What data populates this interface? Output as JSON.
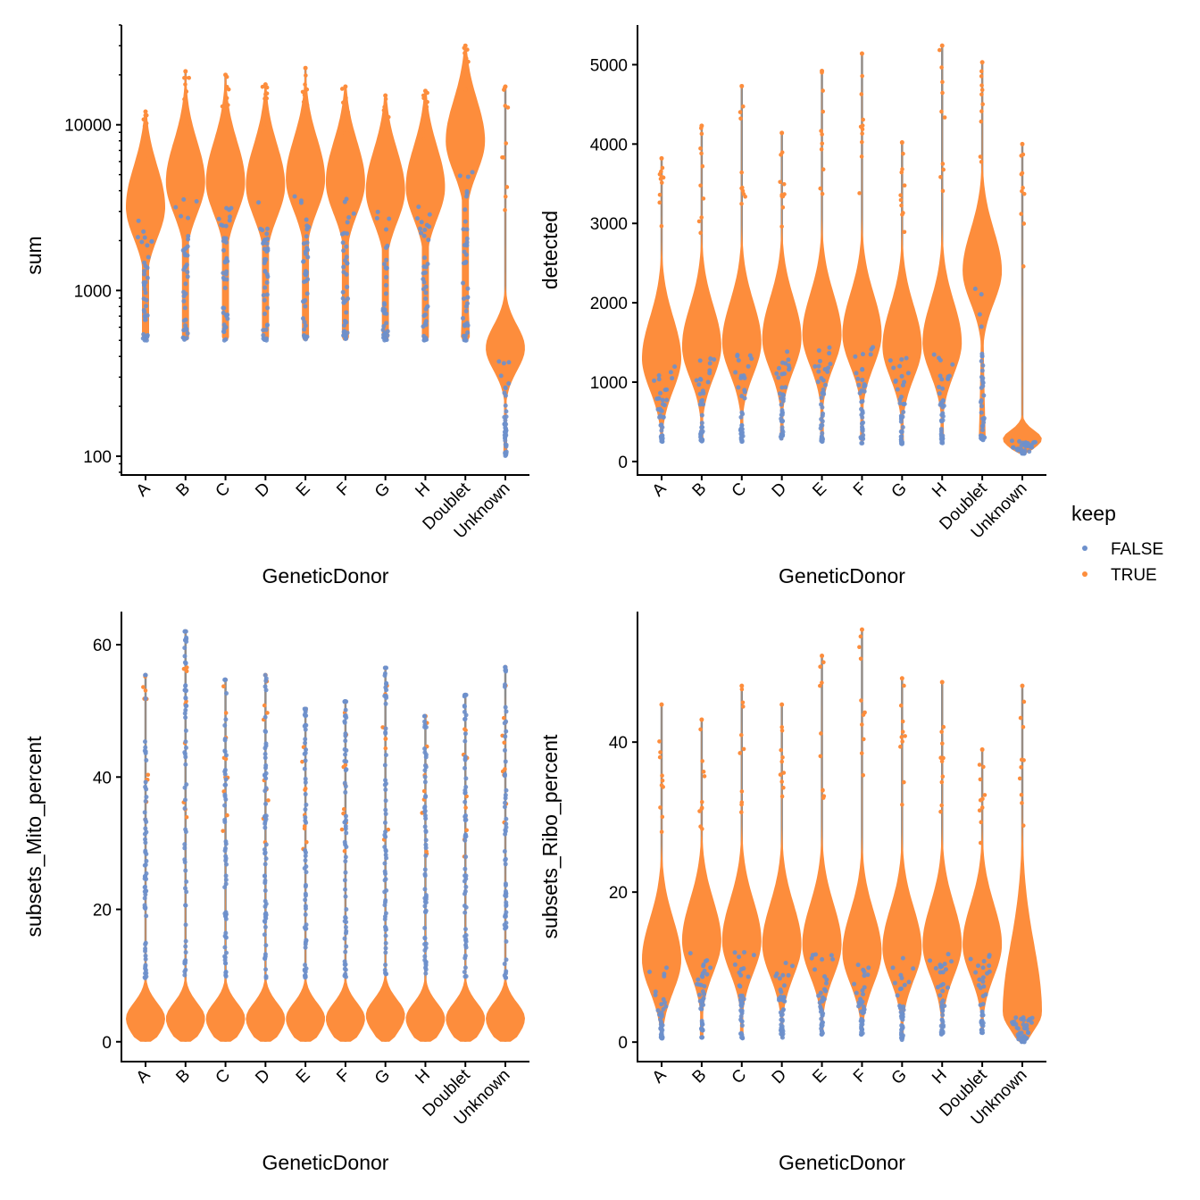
{
  "colors": {
    "FALSE": "#6d90cc",
    "TRUE": "#fd8d3c",
    "tail": "#8c8c8c"
  },
  "legend": {
    "title": "keep",
    "items": [
      {
        "label": "FALSE",
        "key": "FALSE"
      },
      {
        "label": "TRUE",
        "key": "TRUE"
      }
    ],
    "placement": "right"
  },
  "chart_data": [
    {
      "type": "violin",
      "ylabel": "sum",
      "xlabel": "GeneticDonor",
      "yscale": "log10",
      "ylim": [
        77,
        40000
      ],
      "yticks": [
        100,
        1000,
        10000
      ],
      "ytick_labels": [
        "100",
        "1000",
        "10000"
      ],
      "categories": [
        "A",
        "B",
        "C",
        "D",
        "E",
        "F",
        "G",
        "H",
        "Doublet",
        "Unknown"
      ],
      "violins": [
        {
          "min": 500,
          "max": 12000,
          "mode": 3200
        },
        {
          "min": 500,
          "max": 21000,
          "mode": 4500
        },
        {
          "min": 500,
          "max": 20000,
          "mode": 4500
        },
        {
          "min": 500,
          "max": 17500,
          "mode": 4300
        },
        {
          "min": 500,
          "max": 22000,
          "mode": 4700
        },
        {
          "min": 500,
          "max": 17000,
          "mode": 4500
        },
        {
          "min": 500,
          "max": 15000,
          "mode": 4000
        },
        {
          "min": 500,
          "max": 16000,
          "mode": 4200
        },
        {
          "min": 500,
          "max": 30000,
          "mode": 8000
        },
        {
          "min": 100,
          "max": 17000,
          "mode": 450
        }
      ]
    },
    {
      "type": "violin",
      "ylabel": "detected",
      "xlabel": "GeneticDonor",
      "yscale": "linear",
      "ylim": [
        -170,
        5500
      ],
      "yticks": [
        0,
        1000,
        2000,
        3000,
        4000,
        5000
      ],
      "ytick_labels": [
        "0",
        "1000",
        "2000",
        "3000",
        "4000",
        "5000"
      ],
      "categories": [
        "A",
        "B",
        "C",
        "D",
        "E",
        "F",
        "G",
        "H",
        "Doublet",
        "Unknown"
      ],
      "violins": [
        {
          "min": 250,
          "max": 3820,
          "mode": 1300
        },
        {
          "min": 250,
          "max": 4230,
          "mode": 1450
        },
        {
          "min": 250,
          "max": 4730,
          "mode": 1500
        },
        {
          "min": 270,
          "max": 4140,
          "mode": 1550
        },
        {
          "min": 250,
          "max": 4920,
          "mode": 1600
        },
        {
          "min": 230,
          "max": 5140,
          "mode": 1600
        },
        {
          "min": 220,
          "max": 4020,
          "mode": 1450
        },
        {
          "min": 230,
          "max": 5240,
          "mode": 1500
        },
        {
          "min": 270,
          "max": 5030,
          "mode": 2400
        },
        {
          "min": 100,
          "max": 4000,
          "mode": 280
        }
      ]
    },
    {
      "type": "violin",
      "ylabel": "subsets_Mito_percent",
      "xlabel": "GeneticDonor",
      "yscale": "linear",
      "ylim": [
        -3,
        65
      ],
      "yticks": [
        0,
        20,
        40,
        60
      ],
      "ytick_labels": [
        "0",
        "20",
        "40",
        "60"
      ],
      "categories": [
        "A",
        "B",
        "C",
        "D",
        "E",
        "F",
        "G",
        "H",
        "Doublet",
        "Unknown"
      ],
      "violins": [
        {
          "min": 0,
          "max": 55.4,
          "mode": 3.5
        },
        {
          "min": 0,
          "max": 62,
          "mode": 3.5
        },
        {
          "min": 0,
          "max": 54.7,
          "mode": 3.5
        },
        {
          "min": 0,
          "max": 55.4,
          "mode": 3.5
        },
        {
          "min": 0,
          "max": 50.3,
          "mode": 3.5
        },
        {
          "min": 0,
          "max": 51.4,
          "mode": 3.5
        },
        {
          "min": 0,
          "max": 56.5,
          "mode": 4
        },
        {
          "min": 0,
          "max": 49.2,
          "mode": 3.5
        },
        {
          "min": 0,
          "max": 52.4,
          "mode": 3.5
        },
        {
          "min": 0,
          "max": 56.6,
          "mode": 3.5
        }
      ]
    },
    {
      "type": "violin",
      "ylabel": "subsets_Ribo_percent",
      "xlabel": "GeneticDonor",
      "yscale": "linear",
      "ylim": [
        -2.6,
        57.4
      ],
      "yticks": [
        0,
        20,
        40
      ],
      "ytick_labels": [
        "0",
        "20",
        "40"
      ],
      "categories": [
        "A",
        "B",
        "C",
        "D",
        "E",
        "F",
        "G",
        "H",
        "Doublet",
        "Unknown"
      ],
      "violins": [
        {
          "min": 0.5,
          "max": 45,
          "mode": 11
        },
        {
          "min": 0.5,
          "max": 43,
          "mode": 13.5
        },
        {
          "min": 0.5,
          "max": 47.5,
          "mode": 13.5
        },
        {
          "min": 0.5,
          "max": 45,
          "mode": 13
        },
        {
          "min": 1,
          "max": 51.5,
          "mode": 13
        },
        {
          "min": 1,
          "max": 55,
          "mode": 12
        },
        {
          "min": 0.3,
          "max": 48.5,
          "mode": 12.5
        },
        {
          "min": 1,
          "max": 48,
          "mode": 13
        },
        {
          "min": 1.2,
          "max": 39,
          "mode": 13
        },
        {
          "min": 0,
          "max": 47.5,
          "mode": 4
        }
      ]
    }
  ]
}
